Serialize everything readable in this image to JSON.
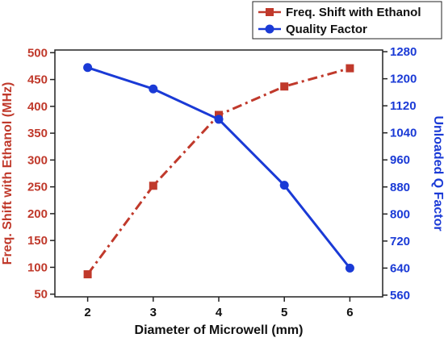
{
  "chart_data": {
    "type": "line",
    "xlabel": "Diameter of Microwell (mm)",
    "x": [
      2,
      3,
      4,
      5,
      6
    ],
    "xlim": [
      1.5,
      6.5
    ],
    "x_ticks": [
      "2",
      "3",
      "4",
      "5",
      "6"
    ],
    "y_left": {
      "label": "Freq. Shift with Ethanol (MHz)",
      "lim": [
        45,
        505
      ],
      "ticks": [
        "50",
        "100",
        "150",
        "200",
        "250",
        "300",
        "350",
        "400",
        "450",
        "500"
      ],
      "color": "#c0392b"
    },
    "y_right": {
      "label": "Unloaded Q Factor",
      "lim": [
        555,
        1285
      ],
      "ticks": [
        "560",
        "640",
        "720",
        "800",
        "880",
        "960",
        "1040",
        "1120",
        "1200",
        "1280"
      ],
      "color": "#1a3ad6"
    },
    "series": [
      {
        "name": "Freq. Shift with Ethanol",
        "axis": "left",
        "values": [
          87,
          252,
          384,
          437,
          471
        ],
        "color": "#c0392b",
        "line_style": "dash-dot",
        "marker": "square"
      },
      {
        "name": "Quality Factor",
        "axis": "right",
        "values": [
          1233,
          1170,
          1080,
          885,
          640
        ],
        "color": "#1a3ad6",
        "line_style": "solid",
        "marker": "circle"
      }
    ],
    "legend_position": "top-right",
    "grid": false
  }
}
